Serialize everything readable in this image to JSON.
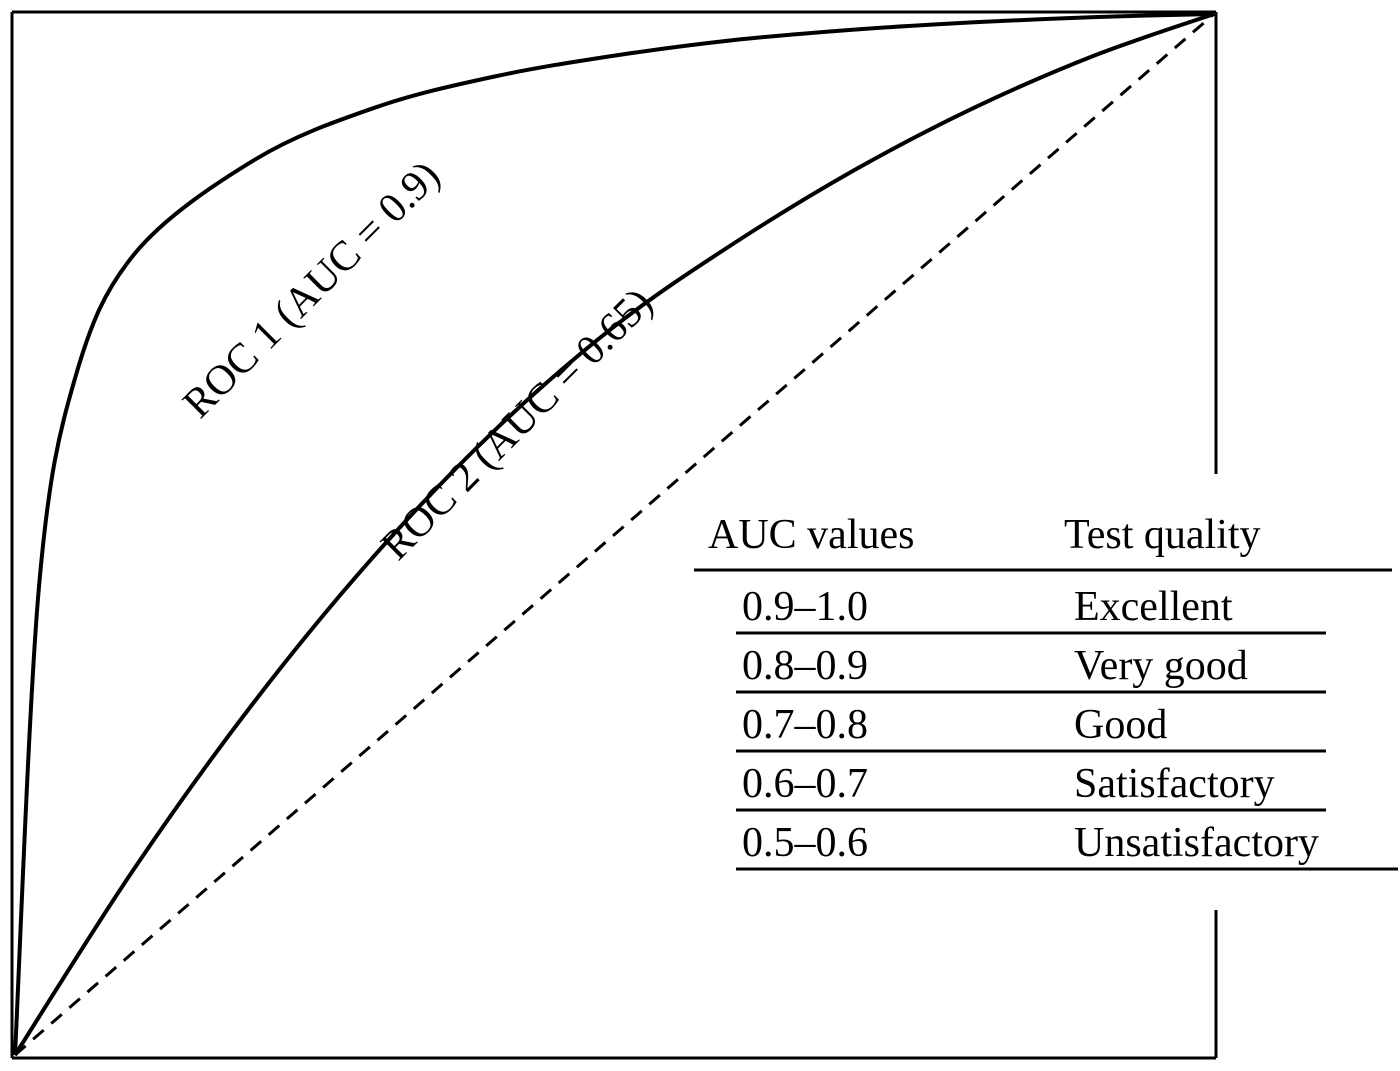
{
  "chart_data": {
    "type": "line",
    "series": [
      {
        "name": "ROC 1 (AUC = 0.9)",
        "style": "solid",
        "points": [
          [
            0,
            0
          ],
          [
            0.02,
            0.45
          ],
          [
            0.05,
            0.65
          ],
          [
            0.1,
            0.77
          ],
          [
            0.2,
            0.86
          ],
          [
            0.3,
            0.91
          ],
          [
            0.4,
            0.94
          ],
          [
            0.5,
            0.96
          ],
          [
            0.6,
            0.975
          ],
          [
            0.7,
            0.985
          ],
          [
            0.8,
            0.992
          ],
          [
            0.9,
            0.997
          ],
          [
            1,
            1
          ]
        ]
      },
      {
        "name": "ROC 2 (AUC = 0.65)",
        "style": "solid",
        "points": [
          [
            0,
            0
          ],
          [
            0.1,
            0.18
          ],
          [
            0.2,
            0.34
          ],
          [
            0.3,
            0.48
          ],
          [
            0.4,
            0.6
          ],
          [
            0.5,
            0.7
          ],
          [
            0.6,
            0.78
          ],
          [
            0.7,
            0.85
          ],
          [
            0.8,
            0.91
          ],
          [
            0.9,
            0.96
          ],
          [
            1,
            1
          ]
        ]
      },
      {
        "name": "",
        "style": "dashed",
        "points": [
          [
            0,
            0
          ],
          [
            1,
            1
          ]
        ]
      }
    ],
    "xlim": [
      0,
      1
    ],
    "ylim": [
      0,
      1
    ],
    "title": "",
    "xlabel": "",
    "ylabel": "",
    "grid": false,
    "line_color": "#000000"
  },
  "curve_labels": {
    "roc1": "ROC 1 (AUC = 0.9)",
    "roc2": "ROC 2 (AUC = 0.65)"
  },
  "quality_table": {
    "headers": {
      "auc": "AUC values",
      "quality": "Test quality"
    },
    "rows": [
      {
        "range": "0.9–1.0",
        "quality": "Excellent"
      },
      {
        "range": "0.8–0.9",
        "quality": "Very good"
      },
      {
        "range": "0.7–0.8",
        "quality": "Good"
      },
      {
        "range": "0.6–0.7",
        "quality": "Satisfactory"
      },
      {
        "range": "0.5–0.6",
        "quality": "Unsatisfactory"
      }
    ]
  }
}
